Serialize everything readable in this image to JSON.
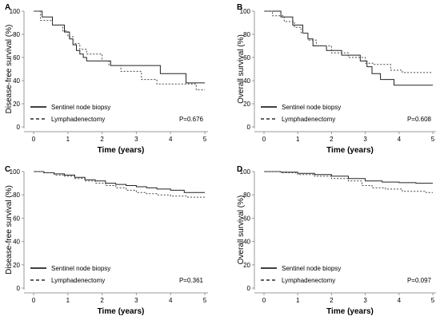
{
  "chart_data": [
    {
      "type": "line",
      "panel": "A",
      "xlabel": "Time (years)",
      "ylabel": "Disease-free survival (%)",
      "xlim": [
        0,
        5
      ],
      "ylim": [
        0,
        100
      ],
      "xticks": [
        "0",
        "1",
        "2",
        "3",
        "4",
        "5"
      ],
      "yticks": [
        "0",
        "20",
        "40",
        "60",
        "80",
        "100"
      ],
      "legend": [
        "Sentinel node biopsy",
        "Lymphadenectomy"
      ],
      "legend_position": "bottom-left",
      "annotation": "P=0.676",
      "series": [
        {
          "name": "Sentinel node biopsy",
          "style": "solid",
          "x": [
            0,
            0.25,
            0.25,
            0.55,
            0.55,
            0.9,
            0.9,
            1.05,
            1.05,
            1.15,
            1.15,
            1.25,
            1.25,
            1.35,
            1.35,
            1.45,
            1.45,
            1.55,
            1.55,
            1.75,
            1.75,
            2.25,
            2.25,
            3.7,
            3.7,
            4.45,
            4.45,
            5.0
          ],
          "y": [
            100,
            100,
            95,
            95,
            88,
            88,
            82,
            82,
            76,
            76,
            71,
            71,
            66,
            66,
            63,
            63,
            60,
            60,
            57,
            57,
            57,
            57,
            53,
            53,
            46,
            46,
            38,
            38
          ]
        },
        {
          "name": "Lymphadenectomy",
          "style": "dashed",
          "x": [
            0,
            0.2,
            0.2,
            0.55,
            0.55,
            0.85,
            0.85,
            1.0,
            1.0,
            1.15,
            1.15,
            1.35,
            1.35,
            1.55,
            1.55,
            2.0,
            2.0,
            2.2,
            2.2,
            2.55,
            2.55,
            3.15,
            3.15,
            3.6,
            3.6,
            4.75,
            4.75,
            5.0
          ],
          "y": [
            100,
            100,
            92,
            92,
            88,
            88,
            83,
            83,
            78,
            78,
            72,
            72,
            67,
            67,
            63,
            63,
            57,
            57,
            53,
            53,
            48,
            48,
            41,
            41,
            37,
            37,
            32,
            32
          ]
        }
      ]
    },
    {
      "type": "line",
      "panel": "B",
      "xlabel": "Time (years)",
      "ylabel": "Overall survival (%)",
      "xlim": [
        0,
        5
      ],
      "ylim": [
        0,
        100
      ],
      "xticks": [
        "0",
        "1",
        "2",
        "3",
        "4",
        "5"
      ],
      "yticks": [
        "0",
        "20",
        "40",
        "60",
        "80",
        "100"
      ],
      "legend": [
        "Sentinel node biopsy",
        "Lymphadenectomy"
      ],
      "legend_position": "bottom-left",
      "annotation": "P=0.608",
      "series": [
        {
          "name": "Sentinel node biopsy",
          "style": "solid",
          "x": [
            0,
            0.5,
            0.5,
            0.85,
            0.85,
            1.15,
            1.15,
            1.3,
            1.3,
            1.45,
            1.45,
            1.85,
            1.85,
            2.3,
            2.3,
            2.85,
            2.85,
            3.05,
            3.05,
            3.2,
            3.2,
            3.45,
            3.45,
            3.85,
            3.85,
            5.0
          ],
          "y": [
            100,
            100,
            95,
            95,
            88,
            88,
            81,
            81,
            76,
            76,
            70,
            70,
            66,
            66,
            62,
            62,
            57,
            57,
            52,
            52,
            46,
            46,
            41,
            41,
            36,
            36
          ]
        },
        {
          "name": "Lymphadenectomy",
          "style": "dashed",
          "x": [
            0,
            0.25,
            0.25,
            0.6,
            0.6,
            0.9,
            0.9,
            1.1,
            1.1,
            1.3,
            1.3,
            1.55,
            1.55,
            2.0,
            2.0,
            2.5,
            2.5,
            3.0,
            3.0,
            3.25,
            3.25,
            3.75,
            3.75,
            4.1,
            4.1,
            5.0
          ],
          "y": [
            100,
            100,
            96,
            96,
            91,
            91,
            86,
            86,
            81,
            81,
            75,
            75,
            70,
            70,
            64,
            64,
            60,
            60,
            55,
            55,
            54,
            54,
            49,
            49,
            47,
            47
          ]
        }
      ]
    },
    {
      "type": "line",
      "panel": "C",
      "xlabel": "Time (years)",
      "ylabel": "Disease-free survival (%)",
      "xlim": [
        0,
        5
      ],
      "ylim": [
        0,
        100
      ],
      "xticks": [
        "0",
        "1",
        "2",
        "3",
        "4",
        "5"
      ],
      "yticks": [
        "0",
        "20",
        "40",
        "60",
        "80",
        "100"
      ],
      "legend": [
        "Sentinel node biopsy",
        "Lymphadenectomy"
      ],
      "legend_position": "bottom-left",
      "annotation": "P=0.361",
      "series": [
        {
          "name": "Sentinel node biopsy",
          "style": "solid",
          "x": [
            0,
            0.3,
            0.3,
            0.6,
            0.6,
            0.9,
            0.9,
            1.2,
            1.2,
            1.5,
            1.5,
            1.8,
            1.8,
            2.1,
            2.1,
            2.4,
            2.4,
            2.7,
            2.7,
            3.0,
            3.0,
            3.3,
            3.3,
            3.6,
            3.6,
            4.0,
            4.0,
            4.4,
            4.4,
            5.0
          ],
          "y": [
            100,
            100,
            99,
            99,
            98,
            98,
            97,
            97,
            95,
            95,
            93,
            93,
            92,
            92,
            90,
            90,
            89,
            89,
            88,
            88,
            87,
            87,
            86,
            86,
            85,
            85,
            84,
            84,
            82,
            82
          ]
        },
        {
          "name": "Lymphadenectomy",
          "style": "dashed",
          "x": [
            0,
            0.3,
            0.3,
            0.6,
            0.6,
            0.9,
            0.9,
            1.2,
            1.2,
            1.5,
            1.5,
            1.8,
            1.8,
            2.1,
            2.1,
            2.4,
            2.4,
            2.7,
            2.7,
            3.0,
            3.0,
            3.3,
            3.3,
            3.6,
            3.6,
            4.0,
            4.0,
            4.5,
            4.5,
            5.0
          ],
          "y": [
            100,
            100,
            99,
            99,
            97,
            97,
            96,
            96,
            94,
            94,
            92,
            92,
            90,
            90,
            88,
            88,
            86,
            86,
            84,
            84,
            82,
            82,
            81,
            81,
            80,
            80,
            79,
            79,
            78,
            78
          ]
        }
      ]
    },
    {
      "type": "line",
      "panel": "D",
      "xlabel": "Time (years)",
      "ylabel": "Overall survival (%)",
      "xlim": [
        0,
        5
      ],
      "ylim": [
        0,
        100
      ],
      "xticks": [
        "0",
        "1",
        "2",
        "3",
        "4",
        "5"
      ],
      "yticks": [
        "0",
        "20",
        "40",
        "60",
        "80",
        "100"
      ],
      "legend": [
        "Sentinel node biopsy",
        "Lymphadenectomy"
      ],
      "legend_position": "bottom-left",
      "annotation": "P=0.097",
      "series": [
        {
          "name": "Sentinel node biopsy",
          "style": "solid",
          "x": [
            0,
            0.5,
            0.5,
            1.0,
            1.0,
            1.5,
            1.5,
            2.0,
            2.0,
            2.5,
            2.5,
            3.0,
            3.0,
            3.5,
            3.5,
            4.0,
            4.0,
            4.5,
            4.5,
            5.0
          ],
          "y": [
            100,
            100,
            99.5,
            99.5,
            98.5,
            98.5,
            97.5,
            97.5,
            96,
            96,
            94,
            94,
            92,
            92,
            91,
            91,
            90.5,
            90.5,
            90,
            90
          ]
        },
        {
          "name": "Lymphadenectomy",
          "style": "dashed",
          "x": [
            0,
            0.5,
            0.5,
            1.0,
            1.0,
            1.5,
            1.5,
            2.0,
            2.0,
            2.5,
            2.5,
            2.9,
            2.9,
            3.2,
            3.2,
            3.6,
            3.6,
            4.1,
            4.1,
            4.8,
            4.8,
            5.0
          ],
          "y": [
            100,
            100,
            99,
            99,
            97.5,
            97.5,
            96,
            96,
            94,
            94,
            92,
            92,
            88,
            88,
            86,
            86,
            85,
            85,
            83,
            83,
            82,
            82
          ]
        }
      ]
    }
  ]
}
